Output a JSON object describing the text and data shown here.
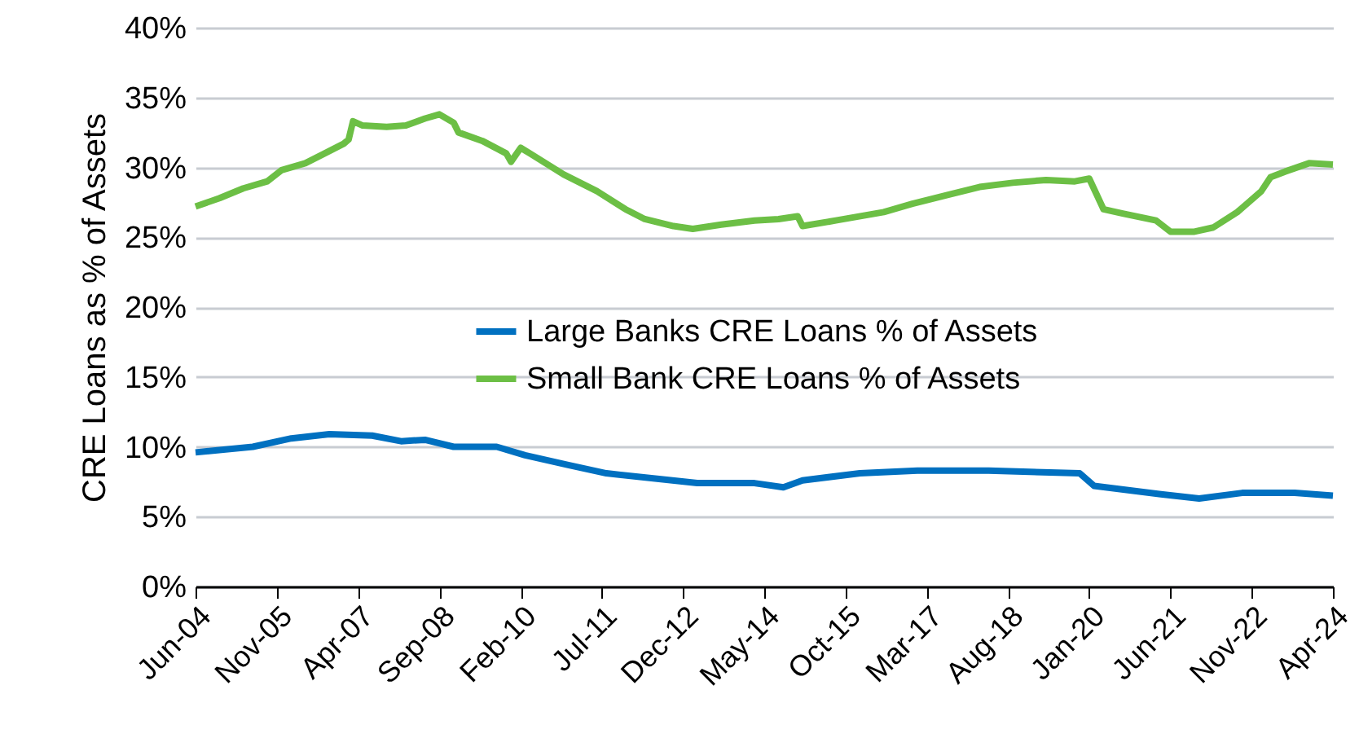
{
  "chart_data": {
    "type": "line",
    "ylabel": "CRE Loans as % of Assets",
    "xlim": [
      "2004-06",
      "2024-04"
    ],
    "xticks": [
      {
        "value": "2004-06",
        "label": "Jun-04"
      },
      {
        "value": "2005-11",
        "label": "Nov-05"
      },
      {
        "value": "2007-04",
        "label": "Apr-07"
      },
      {
        "value": "2008-09",
        "label": "Sep-08"
      },
      {
        "value": "2010-02",
        "label": "Feb-10"
      },
      {
        "value": "2011-07",
        "label": "Jul-11"
      },
      {
        "value": "2012-12",
        "label": "Dec-12"
      },
      {
        "value": "2014-05",
        "label": "May-14"
      },
      {
        "value": "2015-10",
        "label": "Oct-15"
      },
      {
        "value": "2017-03",
        "label": "Mar-17"
      },
      {
        "value": "2018-08",
        "label": "Aug-18"
      },
      {
        "value": "2020-01",
        "label": "Jan-20"
      },
      {
        "value": "2021-06",
        "label": "Jun-21"
      },
      {
        "value": "2022-11",
        "label": "Nov-22"
      },
      {
        "value": "2024-04",
        "label": "Apr-24"
      }
    ],
    "ylim": [
      0,
      40
    ],
    "yticks": [
      {
        "value": 0,
        "label": "0%"
      },
      {
        "value": 5,
        "label": "5%"
      },
      {
        "value": 10,
        "label": "10%"
      },
      {
        "value": 15,
        "label": "15%"
      },
      {
        "value": 20,
        "label": "20%"
      },
      {
        "value": 25,
        "label": "25%"
      },
      {
        "value": 30,
        "label": "30%"
      },
      {
        "value": 35,
        "label": "35%"
      },
      {
        "value": 40,
        "label": "40%"
      }
    ],
    "grid": "y",
    "legend": "center",
    "marker": "none",
    "line_style": "solid",
    "series": [
      {
        "name": "Large Banks CRE Loans % of Assets",
        "color": "#0070c0",
        "x": [
          "2004-06",
          "2005-06",
          "2006-02",
          "2006-10",
          "2007-07",
          "2008-01",
          "2008-06",
          "2008-12",
          "2009-09",
          "2010-03",
          "2010-12",
          "2011-08",
          "2012-07",
          "2013-03",
          "2014-03",
          "2014-09",
          "2015-01",
          "2016-01",
          "2017-01",
          "2018-04",
          "2019-11",
          "2020-02",
          "2021-04",
          "2021-12",
          "2022-09",
          "2023-08",
          "2024-04"
        ],
        "values": [
          9.6,
          10.0,
          10.6,
          10.9,
          10.8,
          10.4,
          10.5,
          10.0,
          10.0,
          9.4,
          8.7,
          8.1,
          7.7,
          7.4,
          7.4,
          7.1,
          7.6,
          8.1,
          8.3,
          8.3,
          8.1,
          7.2,
          6.6,
          6.3,
          6.7,
          6.7,
          6.5
        ]
      },
      {
        "name": "Small Bank CRE Loans % of Assets",
        "color": "#6cbf45",
        "x": [
          "2004-06",
          "2004-11",
          "2005-04",
          "2005-09",
          "2005-12",
          "2006-05",
          "2006-09",
          "2007-01",
          "2007-02",
          "2007-03",
          "2007-05",
          "2007-10",
          "2008-02",
          "2008-06",
          "2008-09",
          "2008-12",
          "2009-01",
          "2009-06",
          "2009-11",
          "2009-12",
          "2010-02",
          "2010-04",
          "2010-11",
          "2011-06",
          "2011-12",
          "2012-04",
          "2012-10",
          "2013-02",
          "2013-08",
          "2014-03",
          "2014-08",
          "2014-12",
          "2015-01",
          "2015-08",
          "2016-06",
          "2016-12",
          "2017-07",
          "2018-02",
          "2018-09",
          "2019-04",
          "2019-10",
          "2020-01",
          "2020-04",
          "2020-08",
          "2021-03",
          "2021-06",
          "2021-11",
          "2022-03",
          "2022-08",
          "2023-01",
          "2023-03",
          "2023-06",
          "2023-11",
          "2024-04"
        ],
        "values": [
          27.2,
          27.8,
          28.5,
          29.0,
          29.8,
          30.3,
          31.0,
          31.7,
          32.0,
          33.3,
          33.0,
          32.9,
          33.0,
          33.5,
          33.8,
          33.2,
          32.5,
          31.9,
          31.0,
          30.4,
          31.4,
          31.0,
          29.5,
          28.3,
          27.0,
          26.3,
          25.8,
          25.6,
          25.9,
          26.2,
          26.3,
          26.5,
          25.8,
          26.2,
          26.8,
          27.4,
          28.0,
          28.6,
          28.9,
          29.1,
          29.0,
          29.2,
          27.0,
          26.7,
          26.2,
          25.4,
          25.4,
          25.7,
          26.8,
          28.3,
          29.3,
          29.7,
          30.3,
          30.2
        ]
      }
    ]
  }
}
